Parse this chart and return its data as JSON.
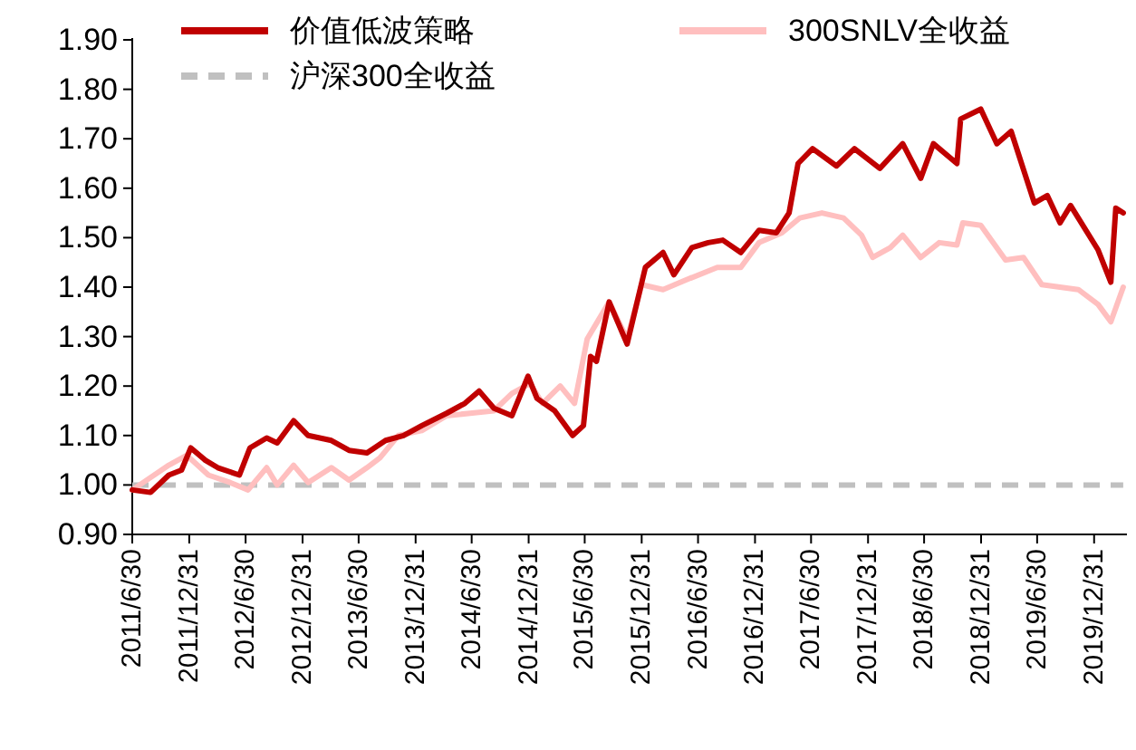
{
  "chart_data": {
    "type": "line",
    "series": [
      {
        "name": "价值低波策略",
        "color": "#c00000",
        "line_style": "solid",
        "x": [
          "2011-06-30",
          "2011-08-28",
          "2011-10-26",
          "2011-12-06",
          "2012-01-05",
          "2012-02-21",
          "2012-04-01",
          "2012-06-10",
          "2012-07-14",
          "2012-09-06",
          "2012-10-10",
          "2012-12-02",
          "2013-01-18",
          "2013-04-03",
          "2013-05-30",
          "2013-07-27",
          "2013-09-25",
          "2013-11-22",
          "2014-01-20",
          "2014-04-10",
          "2014-06-08",
          "2014-07-24",
          "2014-09-10",
          "2014-11-07",
          "2014-12-29",
          "2015-01-27",
          "2015-03-25",
          "2015-05-22",
          "2015-06-26",
          "2015-07-19",
          "2015-08-07",
          "2015-09-17",
          "2015-11-14",
          "2016-01-12",
          "2016-03-09",
          "2016-04-13",
          "2016-06-10",
          "2016-08-02",
          "2016-09-18",
          "2016-11-15",
          "2017-01-13",
          "2017-03-10",
          "2017-04-20",
          "2017-05-19",
          "2017-07-05",
          "2017-09-20",
          "2017-11-17",
          "2018-02-07",
          "2018-04-22",
          "2018-06-19",
          "2018-07-30",
          "2018-10-14",
          "2018-10-26",
          "2018-12-30",
          "2019-02-20",
          "2019-04-07",
          "2019-06-21",
          "2019-08-02",
          "2019-09-12",
          "2019-10-16",
          "2020-01-13",
          "2020-02-23",
          "2020-03-10",
          "2020-04-03"
        ],
        "values": [
          0.99,
          0.985,
          1.02,
          1.03,
          1.075,
          1.05,
          1.035,
          1.02,
          1.075,
          1.095,
          1.085,
          1.13,
          1.1,
          1.09,
          1.07,
          1.065,
          1.09,
          1.1,
          1.12,
          1.145,
          1.165,
          1.19,
          1.155,
          1.14,
          1.22,
          1.175,
          1.15,
          1.1,
          1.12,
          1.26,
          1.25,
          1.37,
          1.285,
          1.44,
          1.47,
          1.425,
          1.48,
          1.49,
          1.495,
          1.47,
          1.515,
          1.51,
          1.55,
          1.65,
          1.68,
          1.645,
          1.68,
          1.64,
          1.69,
          1.62,
          1.69,
          1.65,
          1.74,
          1.76,
          1.69,
          1.715,
          1.57,
          1.585,
          1.53,
          1.565,
          1.475,
          1.41,
          1.56,
          1.55
        ]
      },
      {
        "name": "300SNLV全收益",
        "color": "#ffbfbf",
        "line_style": "solid",
        "x": [
          "2011-06-30",
          "2011-10-26",
          "2011-12-23",
          "2012-03-02",
          "2012-05-11",
          "2012-07-08",
          "2012-09-06",
          "2012-10-10",
          "2012-12-02",
          "2013-01-18",
          "2013-04-03",
          "2013-05-30",
          "2013-07-27",
          "2013-09-07",
          "2013-11-05",
          "2014-01-20",
          "2014-04-10",
          "2014-06-25",
          "2014-09-10",
          "2014-11-07",
          "2015-01-04",
          "2015-02-14",
          "2015-04-12",
          "2015-05-28",
          "2015-07-08",
          "2015-09-17",
          "2015-11-14",
          "2015-12-31",
          "2016-03-09",
          "2016-05-24",
          "2016-08-31",
          "2016-11-15",
          "2017-01-13",
          "2017-03-28",
          "2017-05-25",
          "2017-08-04",
          "2017-10-13",
          "2017-12-10",
          "2018-01-15",
          "2018-03-13",
          "2018-04-22",
          "2018-06-19",
          "2018-08-18",
          "2018-10-14",
          "2018-11-02",
          "2018-12-30",
          "2019-03-20",
          "2019-05-17",
          "2019-07-15",
          "2019-09-12",
          "2019-11-10",
          "2020-01-13",
          "2020-02-23",
          "2020-04-03"
        ],
        "values": [
          0.99,
          1.04,
          1.06,
          1.02,
          1.005,
          0.99,
          1.035,
          1.0,
          1.04,
          1.005,
          1.035,
          1.01,
          1.035,
          1.055,
          1.1,
          1.11,
          1.14,
          1.145,
          1.15,
          1.185,
          1.205,
          1.165,
          1.2,
          1.165,
          1.295,
          1.37,
          1.295,
          1.405,
          1.395,
          1.415,
          1.44,
          1.44,
          1.49,
          1.51,
          1.54,
          1.55,
          1.54,
          1.505,
          1.46,
          1.48,
          1.505,
          1.46,
          1.49,
          1.485,
          1.53,
          1.525,
          1.455,
          1.46,
          1.405,
          1.4,
          1.395,
          1.365,
          1.33,
          1.4
        ]
      },
      {
        "name": "沪深300全收益",
        "color": "#c0c0c0",
        "line_style": "dashed",
        "x": [
          "2011-06-30",
          "2020-04-03"
        ],
        "values": [
          1.0,
          1.0
        ]
      }
    ],
    "xlim": [
      "2011-06-30",
      "2020-04-15"
    ],
    "xticks": [
      {
        "value": "2011-06-30",
        "label": "2011/6/30"
      },
      {
        "value": "2011-12-31",
        "label": "2011/12/31"
      },
      {
        "value": "2012-06-30",
        "label": "2012/6/30"
      },
      {
        "value": "2012-12-31",
        "label": "2012/12/31"
      },
      {
        "value": "2013-06-30",
        "label": "2013/6/30"
      },
      {
        "value": "2013-12-31",
        "label": "2013/12/31"
      },
      {
        "value": "2014-06-30",
        "label": "2014/6/30"
      },
      {
        "value": "2014-12-31",
        "label": "2014/12/31"
      },
      {
        "value": "2015-06-30",
        "label": "2015/6/30"
      },
      {
        "value": "2015-12-31",
        "label": "2015/12/31"
      },
      {
        "value": "2016-06-30",
        "label": "2016/6/30"
      },
      {
        "value": "2016-12-31",
        "label": "2016/12/31"
      },
      {
        "value": "2017-06-30",
        "label": "2017/6/30"
      },
      {
        "value": "2017-12-31",
        "label": "2017/12/31"
      },
      {
        "value": "2018-06-30",
        "label": "2018/6/30"
      },
      {
        "value": "2018-12-31",
        "label": "2018/12/31"
      },
      {
        "value": "2019-06-30",
        "label": "2019/6/30"
      },
      {
        "value": "2019-12-31",
        "label": "2019/12/31"
      }
    ],
    "ylim": [
      0.9,
      1.9
    ],
    "yticks": [
      {
        "value": 0.9,
        "label": "0.90"
      },
      {
        "value": 1.0,
        "label": "1.00"
      },
      {
        "value": 1.1,
        "label": "1.10"
      },
      {
        "value": 1.2,
        "label": "1.20"
      },
      {
        "value": 1.3,
        "label": "1.30"
      },
      {
        "value": 1.4,
        "label": "1.40"
      },
      {
        "value": 1.5,
        "label": "1.50"
      },
      {
        "value": 1.6,
        "label": "1.60"
      },
      {
        "value": 1.7,
        "label": "1.70"
      },
      {
        "value": 1.8,
        "label": "1.80"
      },
      {
        "value": 1.9,
        "label": "1.90"
      }
    ],
    "legend": "top",
    "grid": false,
    "marker": "none"
  }
}
